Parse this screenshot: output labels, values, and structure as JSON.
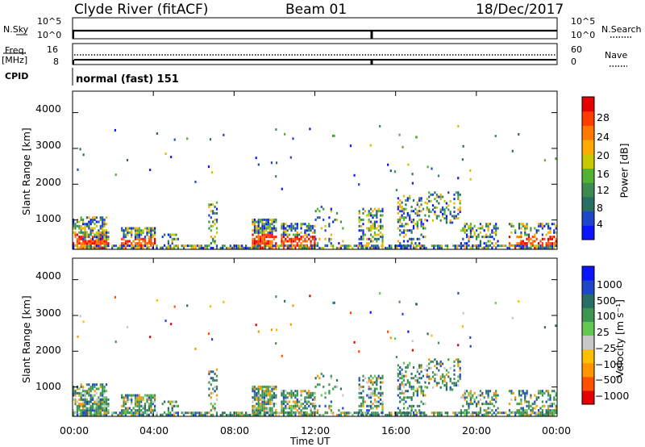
{
  "header": {
    "station": "Clyde River (fitACF)",
    "beam": "Beam 01",
    "date": "18/Dec/2017"
  },
  "top_panel": {
    "left_label": "N.Sky",
    "left_ticks": [
      "10^5",
      "10^0"
    ],
    "right_ticks": [
      "10^5",
      "10^0"
    ],
    "right_label": "N.Search"
  },
  "freq_panel": {
    "left_label_line1": "Freq.",
    "left_label_line2": "[MHz]",
    "left_ticks": [
      "16",
      "8"
    ],
    "right_ticks": [
      "60",
      "0"
    ],
    "right_label": "Nave"
  },
  "cpid": {
    "label": "CPID",
    "value": "normal (fast) 151"
  },
  "colors": {
    "power": [
      "#0a14ff",
      "#1e46c8",
      "#286e64",
      "#3c8c50",
      "#50b432",
      "#c8c800",
      "#ffaa00",
      "#ff7800",
      "#ff3c00",
      "#e60000"
    ],
    "velocity": [
      "#e60000",
      "#ff5000",
      "#ff9600",
      "#ffbe00",
      "#c8c8c8",
      "#64c850",
      "#3c9650",
      "#286e64",
      "#1e46c8",
      "#0a14ff"
    ]
  },
  "chart_data": [
    {
      "type": "heatmap",
      "xlabel": "",
      "ylabel": "Slant Range [km]",
      "yticks": [
        "1000",
        "2000",
        "3000",
        "4000"
      ],
      "ylim": [
        180,
        4600
      ],
      "colorbar": {
        "label": "Power [dB]",
        "ticks": [
          "4",
          "8",
          "12",
          "16",
          "20",
          "24",
          "28"
        ],
        "range": [
          0,
          30
        ]
      }
    },
    {
      "type": "heatmap",
      "xlabel": "Time UT",
      "xticks": [
        "00:00",
        "04:00",
        "08:00",
        "12:00",
        "16:00",
        "20:00",
        "00:00"
      ],
      "ylabel": "Slant Range [km]",
      "yticks": [
        "1000",
        "2000",
        "3000",
        "4000"
      ],
      "ylim": [
        180,
        4600
      ],
      "colorbar": {
        "label": "Velocity [m s⁻¹]",
        "ticks": [
          "1000",
          "500",
          "100",
          "25",
          "−25",
          "−100",
          "−500",
          "−1000"
        ]
      }
    }
  ]
}
